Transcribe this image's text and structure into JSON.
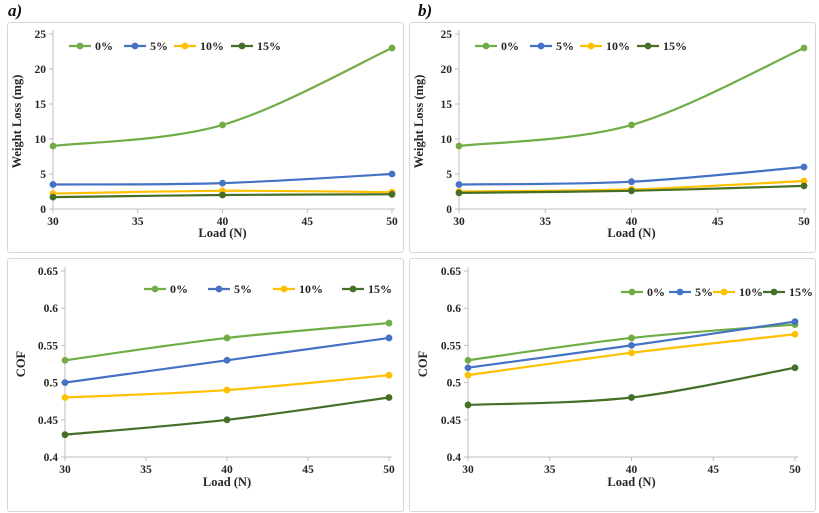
{
  "figure": {
    "labels": [
      "a)",
      "b)"
    ]
  },
  "colors": {
    "series_0pct": "#70AD47",
    "series_5pct": "#4472C4",
    "series_10pct": "#FFC000",
    "series_15pct": "#456E26",
    "axis": "#BFBFBF",
    "text": "#262626",
    "panel_border": "#D8D8D8"
  },
  "chart_data": [
    {
      "type": "line",
      "title": "",
      "xlabel": "Load (N)",
      "ylabel": "Weight Loss (mg)",
      "x": [
        30,
        40,
        50
      ],
      "xlim": [
        30,
        50
      ],
      "ylim": [
        0,
        25
      ],
      "xticks": [
        30,
        35,
        40,
        45,
        50
      ],
      "xtick_labels": [
        "30",
        "35",
        "40",
        "45",
        "50"
      ],
      "yticks": [
        0,
        5,
        10,
        15,
        20,
        25
      ],
      "ytick_labels": [
        "0",
        "5",
        "10",
        "15",
        "20",
        "25"
      ],
      "grid": false,
      "legend_position": "inside-top-left",
      "series": [
        {
          "name": "0%",
          "color": "#70AD47",
          "values": [
            9,
            12,
            23
          ]
        },
        {
          "name": "5%",
          "color": "#4472C4",
          "values": [
            3.5,
            3.7,
            5
          ]
        },
        {
          "name": "10%",
          "color": "#FFC000",
          "values": [
            2.2,
            2.6,
            2.4
          ]
        },
        {
          "name": "15%",
          "color": "#456E26",
          "values": [
            1.7,
            2.0,
            2.1
          ]
        }
      ]
    },
    {
      "type": "line",
      "title": "",
      "xlabel": "Load (N)",
      "ylabel": "Weight Loss (mg)",
      "x": [
        30,
        40,
        50
      ],
      "xlim": [
        30,
        50
      ],
      "ylim": [
        0,
        25
      ],
      "xticks": [
        30,
        35,
        40,
        45,
        50
      ],
      "xtick_labels": [
        "30",
        "35",
        "40",
        "45",
        "50"
      ],
      "yticks": [
        0,
        5,
        10,
        15,
        20,
        25
      ],
      "ytick_labels": [
        "0",
        "5",
        "10",
        "15",
        "20",
        "25"
      ],
      "grid": false,
      "legend_position": "inside-top-left",
      "series": [
        {
          "name": "0%",
          "color": "#70AD47",
          "values": [
            9,
            12,
            23
          ]
        },
        {
          "name": "5%",
          "color": "#4472C4",
          "values": [
            3.5,
            3.9,
            6
          ]
        },
        {
          "name": "10%",
          "color": "#FFC000",
          "values": [
            2.5,
            2.8,
            4
          ]
        },
        {
          "name": "15%",
          "color": "#456E26",
          "values": [
            2.3,
            2.6,
            3.3
          ]
        }
      ]
    },
    {
      "type": "line",
      "title": "",
      "xlabel": "Load (N)",
      "ylabel": "COF",
      "x": [
        30,
        40,
        50
      ],
      "xlim": [
        30,
        50
      ],
      "ylim": [
        0.4,
        0.65
      ],
      "xticks": [
        30,
        35,
        40,
        45,
        50
      ],
      "xtick_labels": [
        "30",
        "35",
        "40",
        "45",
        "50"
      ],
      "yticks": [
        0.4,
        0.45,
        0.5,
        0.55,
        0.6,
        0.65
      ],
      "ytick_labels": [
        "0.4",
        "0.45",
        "0.5",
        "0.55",
        "0.6",
        "0.65"
      ],
      "grid": false,
      "legend_position": "inside-top-center",
      "series": [
        {
          "name": "0%",
          "color": "#70AD47",
          "values": [
            0.53,
            0.56,
            0.58
          ]
        },
        {
          "name": "5%",
          "color": "#4472C4",
          "values": [
            0.5,
            0.53,
            0.56
          ]
        },
        {
          "name": "10%",
          "color": "#FFC000",
          "values": [
            0.48,
            0.49,
            0.51
          ]
        },
        {
          "name": "15%",
          "color": "#456E26",
          "values": [
            0.43,
            0.45,
            0.48
          ]
        }
      ]
    },
    {
      "type": "line",
      "title": "",
      "xlabel": "Load (N)",
      "ylabel": "COF",
      "x": [
        30,
        40,
        50
      ],
      "xlim": [
        30,
        50
      ],
      "ylim": [
        0.4,
        0.65
      ],
      "xticks": [
        30,
        35,
        40,
        45,
        50
      ],
      "xtick_labels": [
        "30",
        "35",
        "40",
        "45",
        "50"
      ],
      "yticks": [
        0.4,
        0.45,
        0.5,
        0.55,
        0.6,
        0.65
      ],
      "ytick_labels": [
        "0.4",
        "0.45",
        "0.5",
        "0.55",
        "0.6",
        "0.65"
      ],
      "grid": false,
      "legend_position": "inside-top-right",
      "series": [
        {
          "name": "0%",
          "color": "#70AD47",
          "values": [
            0.53,
            0.56,
            0.578
          ]
        },
        {
          "name": "5%",
          "color": "#4472C4",
          "values": [
            0.52,
            0.55,
            0.582
          ]
        },
        {
          "name": "10%",
          "color": "#FFC000",
          "values": [
            0.51,
            0.54,
            0.565
          ]
        },
        {
          "name": "15%",
          "color": "#456E26",
          "values": [
            0.47,
            0.48,
            0.52
          ]
        }
      ]
    }
  ]
}
